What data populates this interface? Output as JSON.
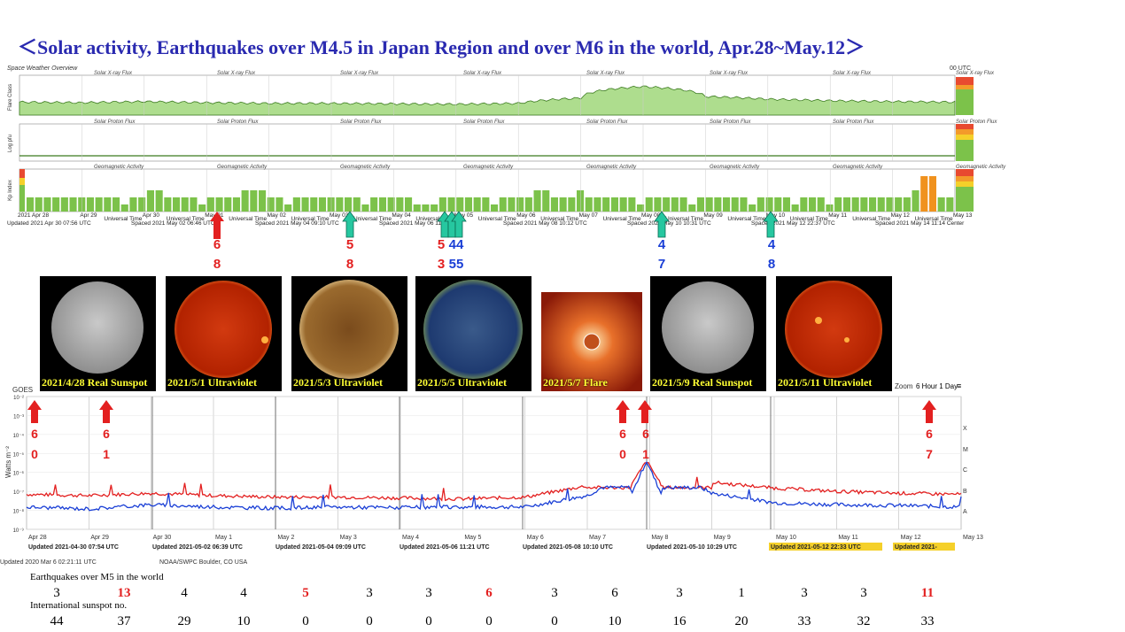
{
  "title": "＜Solar activity, Earthquakes over M4.5 in Japan Region and over M6 in the world,   Apr.28~May.12＞",
  "colors": {
    "title": "#2a2ab0",
    "red": "#e32020",
    "blue": "#1a3fd6",
    "teal": "#26c7a0",
    "green": "#7cc24a",
    "orange": "#f0921e"
  },
  "top_panel": {
    "header_left": "Space Weather Overview",
    "header_right": "00 UTC",
    "section_labels": [
      "Solar X-ray Flux",
      "Solar Proton Flux",
      "Geomagnetic Activity"
    ],
    "axis_labels": [
      "Flare Class",
      "Log pfu",
      "Kp Index"
    ],
    "date_ticks": [
      "2021 Apr 28",
      "Apr 29",
      "Apr 30",
      "May 01",
      "May 02",
      "May 03",
      "May 04",
      "May 05",
      "May 06",
      "May 07",
      "May 08",
      "May 09",
      "May 10",
      "May 11",
      "May 12",
      "May 13"
    ],
    "universal_time": "Universal Time",
    "updated_notes": [
      "Updated 2021 Apr 30 07:56 UTC",
      "Spaced 2021 May 02 06:46 UTC",
      "Spaced 2021 May 04 09:10 UTC",
      "Spaced 2021 May 06 11:21 UTC",
      "Spaced 2021 May 08 10:12 UTC",
      "Spaced 2021 May 10 10:31 UTC",
      "Spaced 2021 May 12 22:37 UTC",
      "Spaced 2021 May 14 11:14 Center"
    ]
  },
  "kp_index": [
    2,
    2,
    2,
    2,
    2,
    2,
    2,
    2,
    2,
    2,
    2,
    1,
    2,
    2,
    3,
    3,
    2,
    2,
    2,
    2,
    1,
    2,
    2,
    2,
    2,
    3,
    3,
    3,
    2,
    2,
    1,
    2,
    2,
    2,
    2,
    2,
    2,
    2,
    2,
    1,
    2,
    2,
    2,
    2,
    2,
    1,
    1,
    1,
    2,
    2,
    2,
    2,
    2,
    2,
    1,
    2,
    2,
    2,
    2,
    3,
    3,
    2,
    2,
    2,
    3,
    2,
    2,
    2,
    2,
    2,
    2,
    1,
    2,
    2,
    2,
    2,
    2,
    1,
    2,
    2,
    2,
    2,
    2,
    2,
    1,
    2,
    2,
    2,
    2,
    1,
    2,
    2,
    2,
    1,
    2,
    2,
    2,
    2,
    2,
    2,
    2,
    2,
    2,
    3,
    5,
    5,
    2,
    2
  ],
  "quake_arrows": [
    {
      "color": "red",
      "top": "6",
      "bottom": "8"
    },
    {
      "color": "teal",
      "top": "5",
      "bottom": "8"
    },
    {
      "color": "teal",
      "top": "5",
      "top2": "44",
      "bottom": "3",
      "bottom2": "55"
    },
    {
      "color": "teal",
      "top": "4",
      "bottom": "7"
    },
    {
      "color": "teal",
      "top": "4",
      "bottom": "8"
    }
  ],
  "images": [
    {
      "caption": "2021/4/28 Real Sunspot",
      "kind": "white"
    },
    {
      "caption": "2021/5/1 Ultraviolet",
      "kind": "red"
    },
    {
      "caption": "2021/5/3 Ultraviolet",
      "kind": "gold"
    },
    {
      "caption": "2021/5/5 Ultraviolet",
      "kind": "blue"
    },
    {
      "caption": "2021/5/7 Flare",
      "kind": "flare"
    },
    {
      "caption": "2021/5/9 Real Sunspot",
      "kind": "white"
    },
    {
      "caption": "2021/5/11 Ultraviolet",
      "kind": "red"
    }
  ],
  "xray_panel": {
    "goes_label": "GOES",
    "ylabel": "Watts m⁻²",
    "flare_classes": [
      "X",
      "M",
      "C",
      "B",
      "A"
    ],
    "zoom_label": "Zoom",
    "zoom_options": "6 Hour  1 Day",
    "date_ticks": [
      "Apr 28",
      "Apr 29",
      "Apr 30",
      "May 1",
      "May 2",
      "May 3",
      "May 4",
      "May 5",
      "May 6",
      "May 7",
      "May 8",
      "May 9",
      "May 10",
      "May 11",
      "May 12",
      "May 13"
    ],
    "updated": [
      "Updated 2021-04-30 07:54 UTC",
      "Updated 2021-05-02 06:39 UTC",
      "Updated 2021-05-04 09:09 UTC",
      "Updated 2021-05-06 11:21 UTC",
      "Updated 2021-05-08 10:10 UTC",
      "Updated 2021-05-10 10:29 UTC",
      "Updated 2021-05-12 22:33 UTC",
      "Updated 2021-"
    ],
    "footer_left": "Updated 2020 Mar  6 02:21:11 UTC",
    "footer_mid": "NOAA/SWPC Boulder, CO USA",
    "world_quakes_arrows": [
      {
        "top": "6",
        "bottom": "0"
      },
      {
        "top": "6",
        "bottom": "1"
      },
      {
        "top": "6",
        "bottom": "0"
      },
      {
        "top": "6",
        "bottom": "1"
      },
      {
        "top": "6",
        "bottom": "7"
      }
    ]
  },
  "chart_data": {
    "type": "line",
    "ylabel": "Watts m⁻²",
    "yscale": "log",
    "ylim": [
      1e-09,
      0.01
    ],
    "x": [
      "Apr 28",
      "Apr 29",
      "Apr 30",
      "May 1",
      "May 2",
      "May 3",
      "May 4",
      "May 5",
      "May 6",
      "May 7",
      "May 8",
      "May 9",
      "May 10",
      "May 11",
      "May 12",
      "May 13"
    ],
    "series": [
      {
        "color": "#e32020",
        "values": [
          7e-08,
          6e-08,
          8e-08,
          6e-08,
          5e-08,
          5e-08,
          4.5e-08,
          4e-08,
          5e-08,
          2e-07,
          4e-06,
          3e-07,
          1.5e-07,
          1e-07,
          8e-08,
          7e-08
        ]
      },
      {
        "color": "#1a3fd6",
        "values": [
          1.5e-08,
          1.2e-08,
          2e-08,
          1.5e-08,
          1.3e-08,
          1.5e-08,
          1.4e-08,
          1.5e-08,
          1.5e-08,
          6e-08,
          4e-06,
          8e-08,
          2.5e-08,
          2e-08,
          1.8e-08,
          1.5e-08
        ]
      }
    ]
  },
  "bottom_table": {
    "row1_label": "Earthquakes over M5 in the world",
    "row1": [
      "3",
      "13",
      "4",
      "4",
      "5",
      "3",
      "3",
      "6",
      "3",
      "6",
      "3",
      "1",
      "3",
      "3",
      "11"
    ],
    "row1_red": [
      false,
      true,
      false,
      false,
      true,
      false,
      false,
      true,
      false,
      false,
      false,
      false,
      false,
      false,
      true
    ],
    "row2_label": "International sunspot no.",
    "row2": [
      "44",
      "37",
      "29",
      "10",
      "0",
      "0",
      "0",
      "0",
      "0",
      "10",
      "16",
      "20",
      "33",
      "32",
      "33"
    ]
  }
}
